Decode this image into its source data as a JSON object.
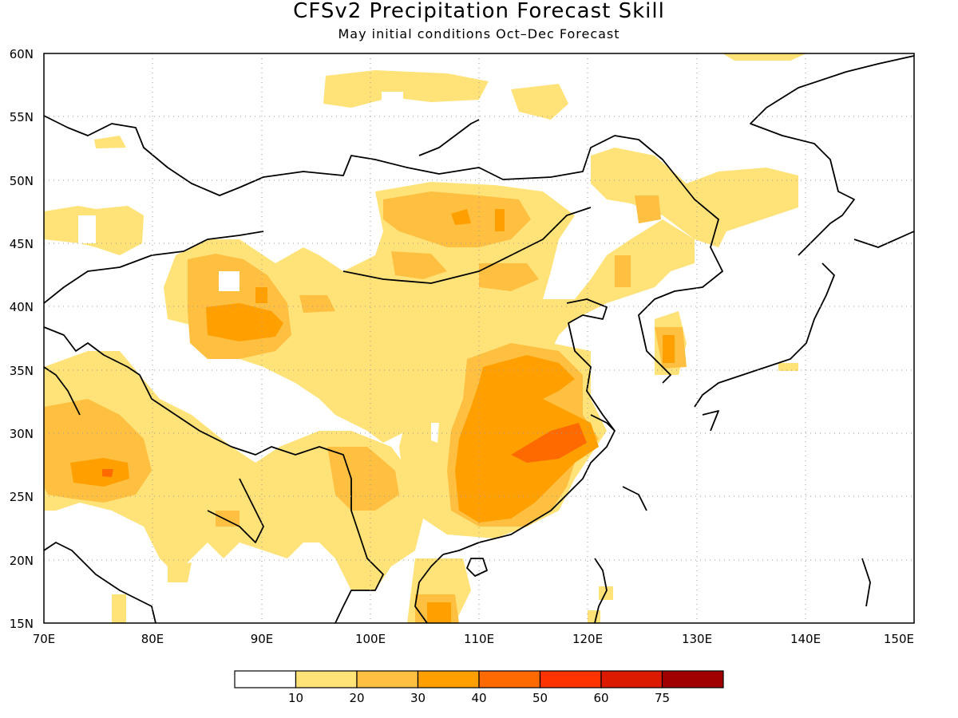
{
  "title": "CFSv2 Precipitation Forecast Skill",
  "subtitle": "May initial conditions  Oct–Dec Forecast",
  "map": {
    "lon_range": [
      70,
      150
    ],
    "lat_range": [
      15,
      60
    ],
    "lon_ticks": [
      "70E",
      "80E",
      "90E",
      "100E",
      "110E",
      "120E",
      "130E",
      "140E",
      "150E"
    ],
    "lat_ticks": [
      "15N",
      "20N",
      "25N",
      "30N",
      "35N",
      "40N",
      "45N",
      "50N",
      "55N",
      "60N"
    ],
    "grid": true
  },
  "colorbar": {
    "labels": [
      "10",
      "20",
      "30",
      "40",
      "50",
      "60",
      "75"
    ],
    "colors": [
      "#ffffff",
      "#ffe278",
      "#ffbf40",
      "#ffa000",
      "#ff6a00",
      "#ff3300",
      "#dc1a00",
      "#a00000"
    ]
  }
}
